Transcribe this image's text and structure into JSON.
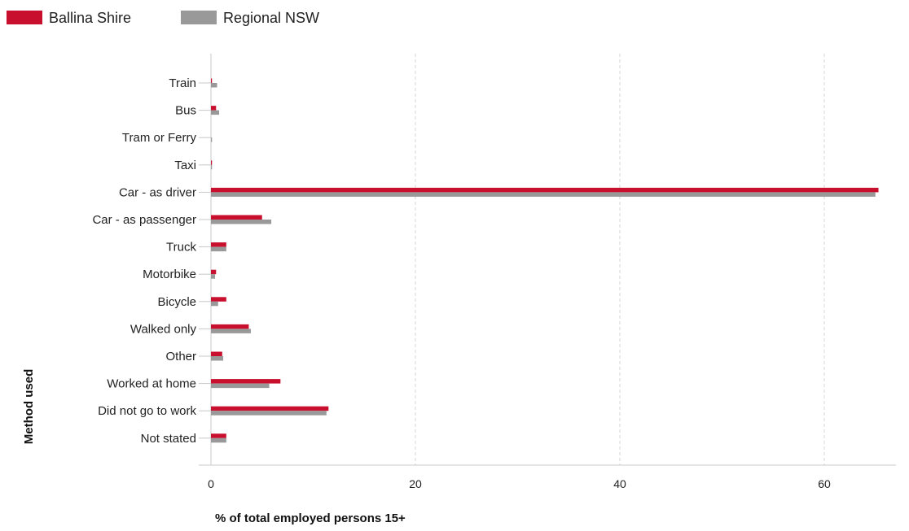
{
  "chart_data": {
    "type": "bar",
    "orientation": "horizontal",
    "categories": [
      "Train",
      "Bus",
      "Tram or Ferry",
      "Taxi",
      "Car - as driver",
      "Car - as passenger",
      "Truck",
      "Motorbike",
      "Bicycle",
      "Walked only",
      "Other",
      "Worked at home",
      "Did not go to work",
      "Not stated"
    ],
    "series": [
      {
        "name": "Ballina Shire",
        "color": "#c8102e",
        "values": [
          0.1,
          0.5,
          0.0,
          0.1,
          65.3,
          5.0,
          1.5,
          0.5,
          1.5,
          3.7,
          1.1,
          6.8,
          11.5,
          1.5
        ]
      },
      {
        "name": "Regional NSW",
        "color": "#999999",
        "values": [
          0.6,
          0.8,
          0.1,
          0.1,
          65.0,
          5.9,
          1.5,
          0.4,
          0.7,
          3.9,
          1.2,
          5.7,
          11.3,
          1.5
        ]
      }
    ],
    "xlabel": "% of total employed persons 15+",
    "ylabel": "Method used",
    "xlim": [
      0,
      66
    ],
    "xticks": [
      0,
      20,
      40,
      60
    ],
    "grid": true,
    "legend": "top-left"
  }
}
